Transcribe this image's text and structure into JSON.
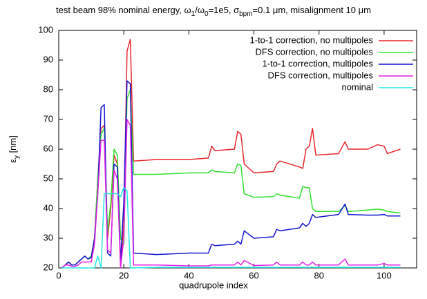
{
  "chart_data": {
    "type": "line",
    "title": [
      "test beam 98% nominal energy, ω",
      "1",
      "/ω",
      "0",
      "=1e5, σ",
      "bpm",
      "=0.1 μm, misalignment 10 μm"
    ],
    "xlabel": "quadrupole index",
    "ylabel": [
      "ε",
      "y",
      " [nm]"
    ],
    "legend": "top-right",
    "x": [
      1,
      2,
      3,
      4,
      5,
      6,
      7,
      8,
      9,
      10,
      11,
      12,
      13,
      14,
      15,
      16,
      17,
      18,
      19,
      20,
      21,
      22,
      23,
      30,
      40,
      46,
      47,
      48,
      54,
      55,
      56,
      57,
      60,
      66,
      67,
      68,
      74,
      75,
      76,
      77,
      78,
      79,
      86,
      88,
      89,
      95,
      98,
      100,
      101,
      105
    ],
    "series": [
      {
        "name": "1-to-1 correction, no multipoles",
        "color": "#e8262a",
        "values": [
          20,
          21,
          22,
          21,
          21,
          22,
          23,
          24,
          23,
          24,
          30,
          50,
          67,
          68,
          30,
          40,
          58,
          55,
          20,
          35,
          93,
          97,
          56,
          56.5,
          56.5,
          57,
          61,
          59.5,
          60,
          66,
          65,
          55,
          52,
          52.5,
          55,
          56,
          54,
          53.5,
          60,
          61,
          67,
          58,
          58.5,
          62.5,
          60,
          60,
          61.5,
          61,
          58.5,
          60
        ]
      },
      {
        "name": "DFS correction, no multipoles",
        "color": "#2ee02e",
        "values": [
          20,
          21,
          22,
          21,
          21,
          22,
          23,
          24,
          23,
          24,
          30,
          50,
          65,
          67,
          32,
          42,
          60,
          58,
          30,
          28,
          77,
          80,
          51.5,
          51.5,
          52,
          52,
          53,
          52.5,
          52,
          55,
          54.5,
          45,
          43.8,
          44,
          45,
          44.5,
          43.5,
          47.5,
          47,
          47,
          40,
          39,
          39,
          41,
          39,
          39.5,
          39.8,
          39.5,
          39,
          38.5
        ]
      },
      {
        "name": "1-to-1 correction, multipoles",
        "color": "#1414d2",
        "values": [
          20,
          21,
          22,
          21,
          21,
          22,
          23,
          24,
          23,
          23.5,
          30,
          45,
          74,
          75,
          25,
          24,
          55,
          54,
          22,
          42,
          83,
          82,
          25,
          24.5,
          25,
          25,
          28,
          27.5,
          28,
          29,
          28,
          32.5,
          30,
          30.5,
          33,
          32.5,
          33.5,
          35,
          34,
          35,
          38,
          37,
          38,
          41.5,
          38,
          37.8,
          37.8,
          38,
          37.5,
          37.5
        ]
      },
      {
        "name": "DFS correction, multipoles",
        "color": "#e620e6",
        "values": [
          20,
          21,
          21,
          20.5,
          20.5,
          21,
          22,
          22,
          22,
          22,
          28,
          45,
          63,
          63,
          26,
          25,
          53,
          50,
          20,
          30,
          70,
          68,
          21,
          21,
          20.7,
          20.7,
          21,
          21,
          21,
          22,
          21,
          22.5,
          20.8,
          21,
          22,
          21,
          21,
          22,
          21,
          21,
          22,
          21,
          21,
          23,
          21,
          21,
          21,
          21.5,
          21,
          21
        ]
      },
      {
        "name": "nominal",
        "color": "#22e6e6",
        "values": [
          20,
          20,
          20,
          20,
          20,
          20,
          20,
          20,
          20,
          20,
          20,
          24,
          20,
          45,
          45,
          45,
          45,
          45,
          44,
          47,
          46,
          20,
          20,
          20.2,
          20.2,
          20.2,
          20.2,
          20.2,
          20.2,
          20.2,
          20.2,
          20.2,
          20.2,
          20.2,
          20.2,
          20.2,
          20.2,
          20.2,
          20.2,
          20.2,
          20.2,
          20.2,
          20.2,
          20.2,
          20.2,
          20.2,
          20.2,
          20.2,
          20.2,
          20.2
        ]
      }
    ],
    "xlim": [
      0,
      110
    ],
    "xticks": [
      0,
      20,
      40,
      60,
      80,
      100
    ],
    "ylim": [
      20,
      100
    ],
    "yticks": [
      20,
      30,
      40,
      50,
      60,
      70,
      80,
      90,
      100
    ]
  }
}
